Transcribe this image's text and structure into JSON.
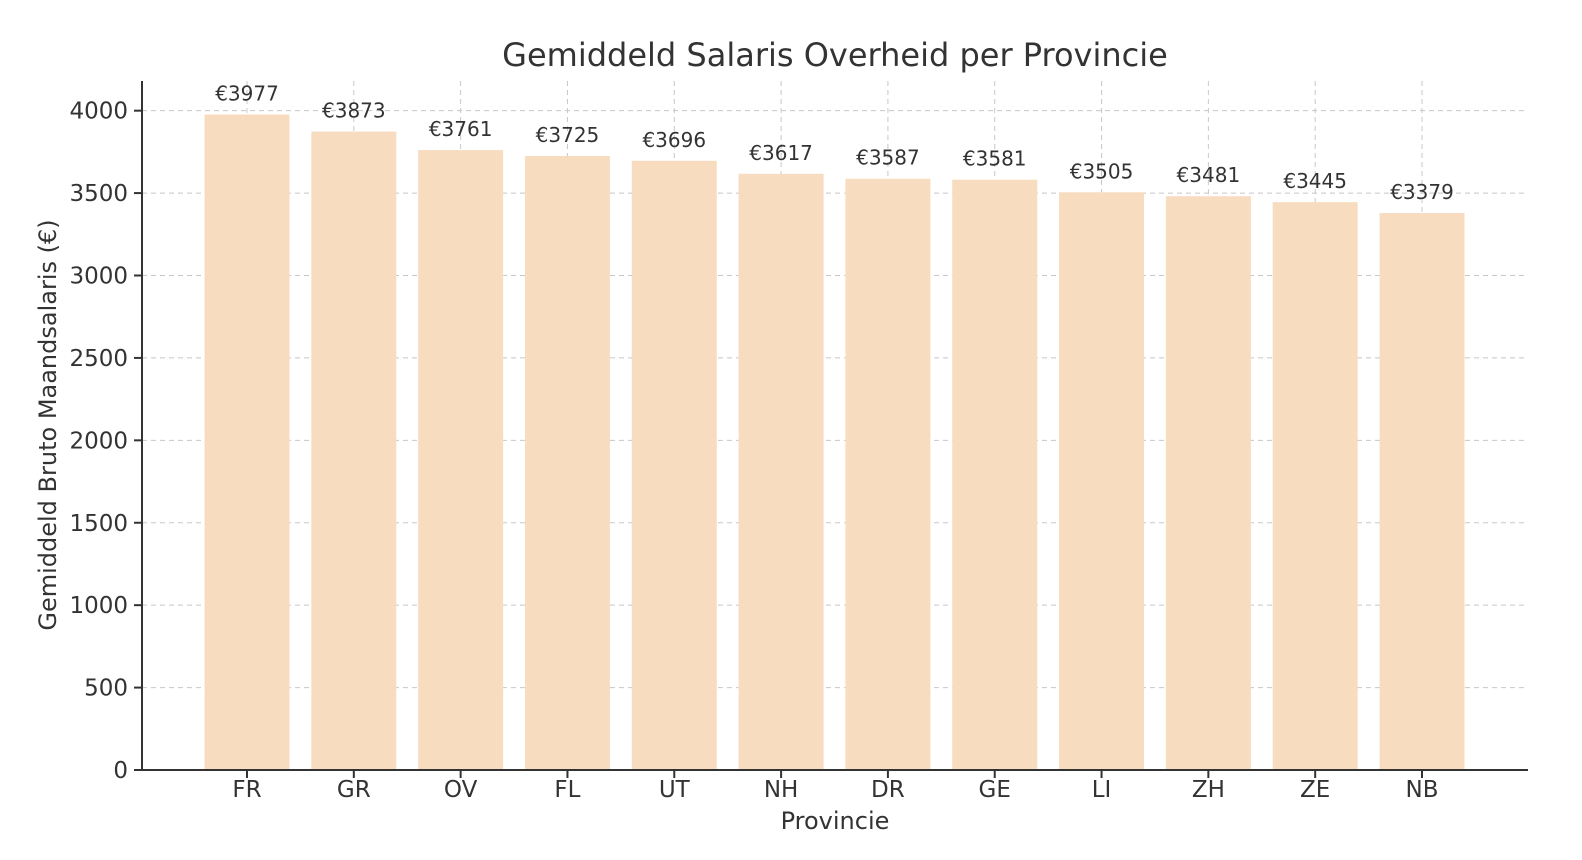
{
  "chart_data": {
    "type": "bar",
    "title": "Gemiddeld Salaris Overheid per Provincie",
    "xlabel": "Provincie",
    "ylabel": "Gemiddeld Bruto Maandsalaris (€)",
    "categories": [
      "FR",
      "GR",
      "OV",
      "FL",
      "UT",
      "NH",
      "DR",
      "GE",
      "LI",
      "ZH",
      "ZE",
      "NB"
    ],
    "values": [
      3977,
      3873,
      3761,
      3725,
      3696,
      3617,
      3587,
      3581,
      3505,
      3481,
      3445,
      3379
    ],
    "data_labels": [
      "€3977",
      "€3873",
      "€3761",
      "€3725",
      "€3696",
      "€3617",
      "€3587",
      "€3581",
      "€3505",
      "€3481",
      "€3445",
      "€3379"
    ],
    "yticks": [
      0,
      500,
      1000,
      1500,
      2000,
      2500,
      3000,
      3500,
      4000
    ],
    "ylim": [
      0,
      4180
    ],
    "grid": true,
    "bar_color": "#f8dcc0",
    "axis_color": "#333333",
    "grid_color": "#c8c8c8"
  }
}
